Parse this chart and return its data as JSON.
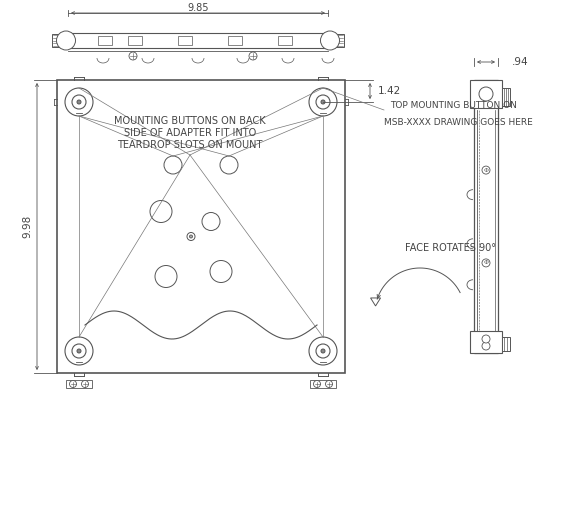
{
  "bg_color": "#ffffff",
  "line_color": "#555555",
  "dim_color": "#555555",
  "text_color": "#444444",
  "dim_9_85": "9.85",
  "dim_9_98": "9.98",
  "dim_1_42": "1.42",
  "dim_0_94": ".94",
  "label_mounting": "MOUNTING BUTTONS ON BACK\nSIDE OF ADAPTER FIT INTO\nTEARDROP SLOTS ON MOUNT",
  "label_top_button_1": "TOP MOUNTING BUTTON ON",
  "label_top_button_2": "MSB-XXXX DRAWING GOES HERE",
  "label_face_rotates": "FACE ROTATES 90°"
}
